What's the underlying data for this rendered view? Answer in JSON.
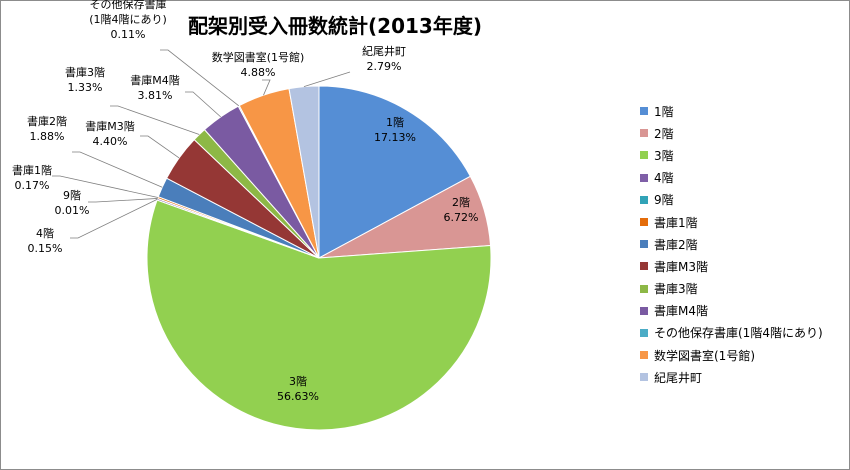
{
  "chart_data": {
    "type": "pie",
    "title": "配架別受入冊数統計(2013年度)",
    "slices": [
      {
        "label": "1階",
        "value": 17.13,
        "percent": "17.13%",
        "color": "#558ed5"
      },
      {
        "label": "2階",
        "value": 6.72,
        "percent": "6.72%",
        "color": "#d99694"
      },
      {
        "label": "3階",
        "value": 56.63,
        "percent": "56.63%",
        "color": "#92d050"
      },
      {
        "label": "4階",
        "value": 0.15,
        "percent": "0.15%",
        "color": "#7f5fa7"
      },
      {
        "label": "9階",
        "value": 0.01,
        "percent": "0.01%",
        "color": "#31a3b7"
      },
      {
        "label": "書庫1階",
        "value": 0.17,
        "percent": "0.17%",
        "color": "#e46c0a"
      },
      {
        "label": "書庫2階",
        "value": 1.88,
        "percent": "1.88%",
        "color": "#4a7ebb"
      },
      {
        "label": "書庫M3階",
        "value": 4.4,
        "percent": "4.40%",
        "color": "#953735"
      },
      {
        "label": "書庫3階",
        "value": 1.33,
        "percent": "1.33%",
        "color": "#8db846"
      },
      {
        "label": "書庫M4階",
        "value": 3.81,
        "percent": "3.81%",
        "color": "#7a5aa2"
      },
      {
        "label": "その他保存書庫(1階4階にあり)",
        "value": 0.11,
        "percent": "0.11%",
        "color": "#4bacc6"
      },
      {
        "label": "数学図書室(1号館)",
        "value": 4.88,
        "percent": "4.88%",
        "color": "#f79646"
      },
      {
        "label": "紀尾井町",
        "value": 2.79,
        "percent": "2.79%",
        "color": "#b3c3e1"
      }
    ],
    "legend_position": "right"
  }
}
